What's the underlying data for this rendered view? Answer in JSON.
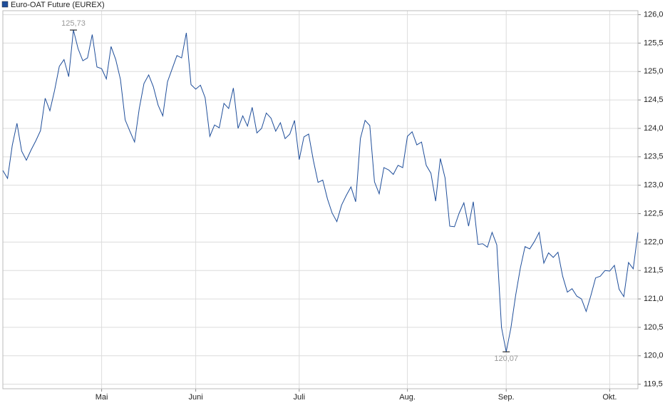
{
  "chart_data": {
    "type": "line",
    "categories": [
      null,
      null,
      null,
      null,
      null,
      null,
      null,
      null,
      null,
      null,
      null,
      null,
      null,
      null,
      null,
      null,
      null,
      null,
      null,
      null,
      null,
      "Mai",
      null,
      null,
      null,
      null,
      null,
      null,
      null,
      null,
      null,
      null,
      null,
      null,
      null,
      null,
      null,
      null,
      null,
      null,
      null,
      "Juni",
      null,
      null,
      null,
      null,
      null,
      null,
      null,
      null,
      null,
      null,
      null,
      null,
      null,
      null,
      null,
      null,
      null,
      null,
      null,
      null,
      null,
      "Juli",
      null,
      null,
      null,
      null,
      null,
      null,
      null,
      null,
      null,
      null,
      null,
      null,
      null,
      null,
      null,
      null,
      null,
      null,
      null,
      null,
      null,
      null,
      "Aug.",
      null,
      null,
      null,
      null,
      null,
      null,
      null,
      null,
      null,
      null,
      null,
      null,
      null,
      null,
      null,
      null,
      null,
      null,
      null,
      null,
      "Sep.",
      null,
      null,
      null,
      null,
      null,
      null,
      null,
      null,
      null,
      null,
      null,
      null,
      null,
      null,
      null,
      null,
      null,
      null,
      null,
      null,
      null,
      "Okt.",
      null,
      null,
      null,
      null,
      null,
      null
    ],
    "series": [
      {
        "name": "Euro-OAT Future (EUREX)",
        "color": "#1f4e9a",
        "values": [
          123.26,
          123.12,
          123.7,
          124.09,
          123.6,
          123.44,
          123.62,
          123.78,
          123.96,
          124.53,
          124.31,
          124.67,
          125.09,
          125.21,
          124.91,
          125.73,
          125.4,
          125.19,
          125.24,
          125.65,
          125.08,
          125.05,
          124.87,
          125.44,
          125.21,
          124.86,
          124.15,
          123.95,
          123.76,
          124.35,
          124.79,
          124.94,
          124.73,
          124.41,
          124.22,
          124.82,
          125.05,
          125.28,
          125.24,
          125.68,
          124.77,
          124.69,
          124.76,
          124.54,
          123.86,
          124.06,
          124.01,
          124.44,
          124.35,
          124.71,
          124.0,
          124.22,
          124.04,
          124.37,
          123.92,
          124.0,
          124.27,
          124.18,
          123.95,
          124.1,
          123.82,
          123.9,
          124.14,
          123.45,
          123.85,
          123.9,
          123.44,
          123.05,
          123.09,
          122.76,
          122.51,
          122.36,
          122.65,
          122.82,
          122.97,
          122.71,
          123.82,
          124.14,
          124.05,
          123.06,
          122.85,
          123.31,
          123.27,
          123.19,
          123.35,
          123.31,
          123.86,
          123.94,
          123.71,
          123.76,
          123.35,
          123.21,
          122.72,
          123.47,
          123.13,
          122.28,
          122.27,
          122.51,
          122.69,
          122.28,
          122.71,
          121.96,
          121.97,
          121.91,
          122.17,
          121.95,
          120.5,
          120.07,
          120.49,
          121.06,
          121.54,
          121.92,
          121.88,
          122.01,
          122.17,
          121.63,
          121.81,
          121.73,
          121.82,
          121.4,
          121.12,
          121.18,
          121.05,
          121.0,
          120.78,
          121.06,
          121.37,
          121.4,
          121.5,
          121.49,
          121.59,
          121.17,
          121.04,
          121.64,
          121.53,
          122.17
        ]
      }
    ],
    "annotations": [
      {
        "value": 125.73,
        "label": "125,73",
        "position": "above"
      },
      {
        "value": 120.07,
        "label": "120,07",
        "position": "below"
      }
    ],
    "ylim": [
      119.42,
      126.07
    ],
    "yticks": [
      {
        "value": 119.5,
        "label": "119,5"
      },
      {
        "value": 120.0,
        "label": "120,0"
      },
      {
        "value": 120.5,
        "label": "120,5"
      },
      {
        "value": 121.0,
        "label": "121,0"
      },
      {
        "value": 121.5,
        "label": "121,5"
      },
      {
        "value": 122.0,
        "label": "122,0"
      },
      {
        "value": 122.5,
        "label": "122,5"
      },
      {
        "value": 123.0,
        "label": "123,0"
      },
      {
        "value": 123.5,
        "label": "123,5"
      },
      {
        "value": 124.0,
        "label": "124,0"
      },
      {
        "value": 124.5,
        "label": "124,5"
      },
      {
        "value": 125.0,
        "label": "125,0"
      },
      {
        "value": 125.5,
        "label": "125,5"
      },
      {
        "value": 126.0,
        "label": "126,0"
      }
    ],
    "grid": true,
    "legend": "top-left",
    "y_axis_side": "right"
  }
}
